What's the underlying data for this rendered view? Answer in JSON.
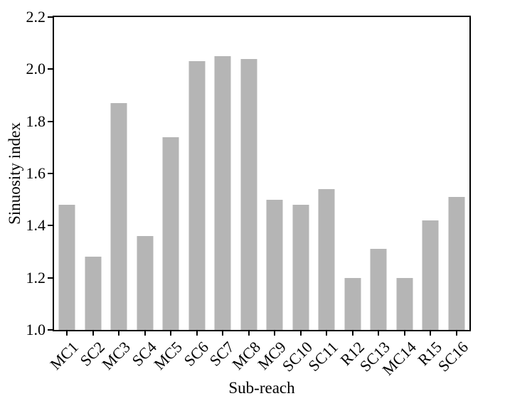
{
  "chart_data": {
    "type": "bar",
    "title": "",
    "xlabel": "Sub-reach",
    "ylabel": "Sinuosity index",
    "categories": [
      "MC1",
      "SC2",
      "MC3",
      "SC4",
      "MC5",
      "SC6",
      "SC7",
      "MC8",
      "MC9",
      "SC10",
      "SC11",
      "R12",
      "SC13",
      "MC14",
      "R15",
      "SC16"
    ],
    "values": [
      1.48,
      1.28,
      1.87,
      1.36,
      1.74,
      2.03,
      2.05,
      2.04,
      1.5,
      1.48,
      1.54,
      1.2,
      1.31,
      1.2,
      1.42,
      1.51
    ],
    "ylim": [
      1.0,
      2.2
    ],
    "yticks": [
      1.0,
      1.2,
      1.4,
      1.6,
      1.8,
      2.0,
      2.2
    ],
    "ytick_labels": [
      "1.0",
      "1.2",
      "1.4",
      "1.6",
      "1.8",
      "2.0",
      "2.2"
    ],
    "bar_color": "#b5b5b5",
    "axis_color": "#000000",
    "text_color": "#000000",
    "background_color": "#ffffff",
    "grid": false,
    "legend": null,
    "x_tick_label_rotation_deg": 45
  }
}
